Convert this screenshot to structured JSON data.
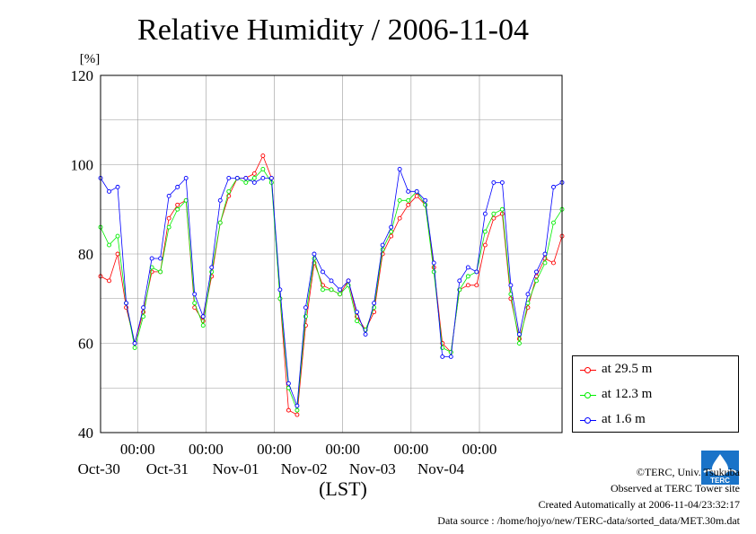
{
  "title": "Relative Humidity / 2006-11-04",
  "chart_data": {
    "type": "line",
    "title": "Relative Humidity / 2006-11-04",
    "ylabel": "[%]",
    "xlabel": "(LST)",
    "ylim": [
      40,
      120
    ],
    "y_ticks": [
      40,
      60,
      80,
      100,
      120
    ],
    "xlim": [
      "2006-10-29T11:00",
      "2006-11-05T05:00"
    ],
    "x_ticks": [
      {
        "time": "2006-10-30T00:00",
        "label_time": "00:00",
        "label_date": "Oct-30"
      },
      {
        "time": "2006-10-31T00:00",
        "label_time": "00:00",
        "label_date": "Oct-31"
      },
      {
        "time": "2006-11-01T00:00",
        "label_time": "00:00",
        "label_date": "Nov-01"
      },
      {
        "time": "2006-11-02T00:00",
        "label_time": "00:00",
        "label_date": "Nov-02"
      },
      {
        "time": "2006-11-03T00:00",
        "label_time": "00:00",
        "label_date": "Nov-03"
      },
      {
        "time": "2006-11-04T00:00",
        "label_time": "00:00",
        "label_date": "Nov-04"
      }
    ],
    "grid": true,
    "legend_position": "bottom-right, outside plot",
    "x": [
      "2006-10-29T11:00",
      "2006-10-29T14:00",
      "2006-10-29T17:00",
      "2006-10-29T20:00",
      "2006-10-29T23:00",
      "2006-10-30T02:00",
      "2006-10-30T05:00",
      "2006-10-30T08:00",
      "2006-10-30T11:00",
      "2006-10-30T14:00",
      "2006-10-30T17:00",
      "2006-10-30T20:00",
      "2006-10-30T23:00",
      "2006-10-31T02:00",
      "2006-10-31T05:00",
      "2006-10-31T08:00",
      "2006-10-31T11:00",
      "2006-10-31T14:00",
      "2006-10-31T17:00",
      "2006-10-31T20:00",
      "2006-10-31T23:00",
      "2006-11-01T02:00",
      "2006-11-01T05:00",
      "2006-11-01T08:00",
      "2006-11-01T11:00",
      "2006-11-01T14:00",
      "2006-11-01T17:00",
      "2006-11-01T20:00",
      "2006-11-01T23:00",
      "2006-11-02T02:00",
      "2006-11-02T05:00",
      "2006-11-02T08:00",
      "2006-11-02T11:00",
      "2006-11-02T14:00",
      "2006-11-02T17:00",
      "2006-11-02T20:00",
      "2006-11-02T23:00",
      "2006-11-03T02:00",
      "2006-11-03T05:00",
      "2006-11-03T08:00",
      "2006-11-03T11:00",
      "2006-11-03T14:00",
      "2006-11-03T17:00",
      "2006-11-03T20:00",
      "2006-11-03T23:00",
      "2006-11-04T02:00",
      "2006-11-04T05:00",
      "2006-11-04T08:00",
      "2006-11-04T11:00",
      "2006-11-04T14:00",
      "2006-11-04T17:00",
      "2006-11-04T20:00",
      "2006-11-04T23:00",
      "2006-11-05T02:00",
      "2006-11-05T05:00"
    ],
    "series": [
      {
        "name": "at 29.5 m",
        "color": "#ff0000",
        "values": [
          75,
          74,
          80,
          68,
          60,
          67,
          76,
          76,
          88,
          91,
          92,
          68,
          65,
          75,
          87,
          93,
          97,
          97,
          98,
          102,
          97,
          70,
          45,
          44,
          64,
          78,
          73,
          72,
          71,
          74,
          66,
          63,
          67,
          80,
          84,
          88,
          91,
          93,
          91,
          77,
          60,
          58,
          72,
          73,
          73,
          82,
          88,
          89,
          70,
          61,
          68,
          75,
          79,
          78,
          84
        ]
      },
      {
        "name": "at 12.3 m",
        "color": "#00ee00",
        "values": [
          86,
          82,
          84,
          69,
          59,
          66,
          77,
          76,
          86,
          90,
          92,
          69,
          64,
          76,
          87,
          94,
          97,
          96,
          97,
          99,
          96,
          70,
          50,
          45,
          66,
          79,
          72,
          72,
          71,
          73,
          65,
          63,
          68,
          81,
          85,
          92,
          92,
          94,
          91,
          76,
          59,
          58,
          72,
          75,
          76,
          85,
          89,
          90,
          71,
          60,
          69,
          74,
          78,
          87,
          90
        ]
      },
      {
        "name": "at 1.6 m",
        "color": "#0000ff",
        "values": [
          97,
          94,
          95,
          69,
          60,
          68,
          79,
          79,
          93,
          95,
          97,
          71,
          66,
          77,
          92,
          97,
          97,
          97,
          96,
          97,
          97,
          72,
          51,
          46,
          68,
          80,
          76,
          74,
          72,
          74,
          67,
          62,
          69,
          82,
          86,
          99,
          94,
          94,
          92,
          78,
          57,
          57,
          74,
          77,
          76,
          89,
          96,
          96,
          73,
          62,
          71,
          76,
          80,
          95,
          96
        ]
      }
    ]
  },
  "legend_title": "",
  "credits": {
    "copyright": "©TERC, Univ. Tsukuba",
    "observed": "Observed at TERC Tower site",
    "created": "Created Automatically at 2006-11-04/23:32:17",
    "source": "Data source : /home/hojyo/new/TERC-data/sorted_data/MET.30m.dat"
  },
  "logo": {
    "text": "TERC",
    "color": "#1a73c8"
  }
}
